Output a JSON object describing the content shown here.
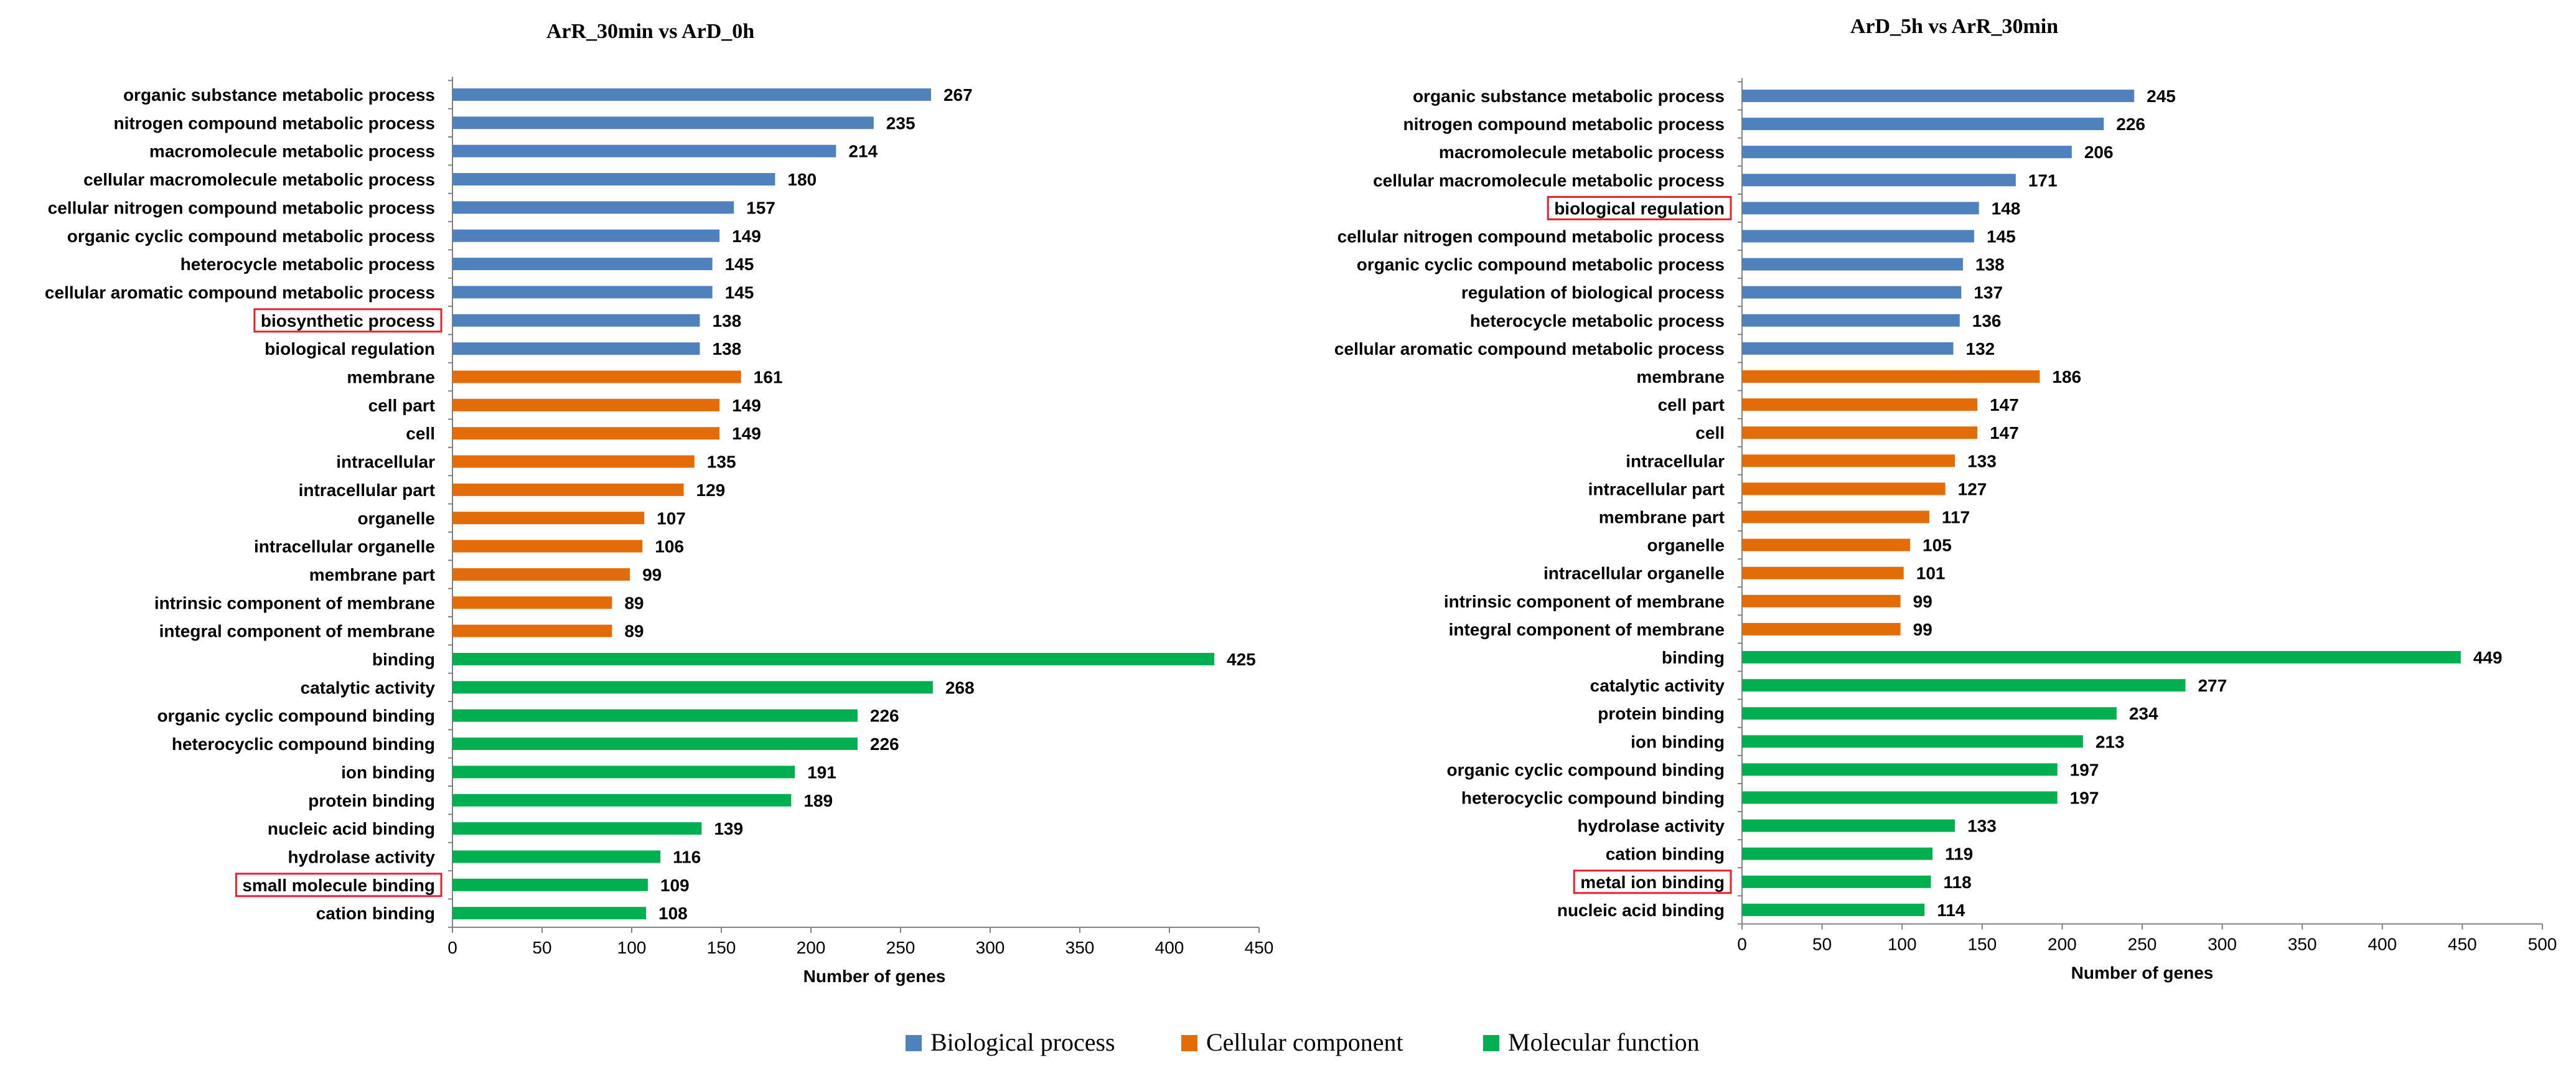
{
  "colors": {
    "biological_process": "#4f81bd",
    "cellular_component": "#e36c09",
    "molecular_function": "#00b050",
    "highlight_box": "#e8202a"
  },
  "legend": {
    "items": [
      {
        "label": "Biological process",
        "color": "#4f81bd"
      },
      {
        "label": "Cellular component",
        "color": "#e36c09"
      },
      {
        "label": "Molecular function",
        "color": "#00b050"
      }
    ]
  },
  "chart_data": [
    {
      "type": "bar",
      "orientation": "horizontal",
      "title": "ArR_30min vs ArD_0h",
      "xlabel": "Number of genes",
      "ylabel": "",
      "xlim": [
        0,
        450
      ],
      "xticks": [
        0,
        50,
        100,
        150,
        200,
        250,
        300,
        350,
        400,
        450
      ],
      "grid": false,
      "legend_position": "bottom-center",
      "categories": [
        "organic substance metabolic process",
        "nitrogen compound metabolic process",
        "macromolecule metabolic process",
        "cellular macromolecule metabolic process",
        "cellular nitrogen compound metabolic process",
        "organic cyclic compound metabolic process",
        "heterocycle metabolic process",
        "cellular aromatic compound metabolic process",
        "biosynthetic process",
        "biological regulation",
        "membrane",
        "cell part",
        "cell",
        "intracellular",
        "intracellular part",
        "organelle",
        "intracellular organelle",
        "membrane part",
        "intrinsic component of membrane",
        "integral component of membrane",
        "binding",
        "catalytic activity",
        "organic cyclic compound binding",
        "heterocyclic compound binding",
        "ion binding",
        "protein binding",
        "nucleic acid binding",
        "hydrolase activity",
        "small molecule binding",
        "cation binding"
      ],
      "values": [
        267,
        235,
        214,
        180,
        157,
        149,
        145,
        145,
        138,
        138,
        161,
        149,
        149,
        135,
        129,
        107,
        106,
        99,
        89,
        89,
        425,
        268,
        226,
        226,
        191,
        189,
        139,
        116,
        109,
        108
      ],
      "groups": [
        "BP",
        "BP",
        "BP",
        "BP",
        "BP",
        "BP",
        "BP",
        "BP",
        "BP",
        "BP",
        "CC",
        "CC",
        "CC",
        "CC",
        "CC",
        "CC",
        "CC",
        "CC",
        "CC",
        "CC",
        "MF",
        "MF",
        "MF",
        "MF",
        "MF",
        "MF",
        "MF",
        "MF",
        "MF",
        "MF"
      ],
      "highlighted": [
        "biosynthetic process",
        "small molecule binding"
      ]
    },
    {
      "type": "bar",
      "orientation": "horizontal",
      "title": "ArD_5h vs ArR_30min",
      "xlabel": "Number of genes",
      "ylabel": "",
      "xlim": [
        0,
        500
      ],
      "xticks": [
        0,
        50,
        100,
        150,
        200,
        250,
        300,
        350,
        400,
        450,
        500
      ],
      "grid": false,
      "legend_position": "bottom-center",
      "categories": [
        "organic substance metabolic process",
        "nitrogen compound metabolic process",
        "macromolecule metabolic process",
        "cellular macromolecule metabolic process",
        "biological regulation",
        "cellular nitrogen compound metabolic process",
        "organic cyclic compound metabolic process",
        "regulation of biological process",
        "heterocycle metabolic process",
        "cellular aromatic compound metabolic process",
        "membrane",
        "cell part",
        "cell",
        "intracellular",
        "intracellular part",
        "membrane part",
        "organelle",
        "intracellular organelle",
        "intrinsic component of membrane",
        "integral component of membrane",
        "binding",
        "catalytic activity",
        "protein binding",
        "ion binding",
        "organic cyclic compound binding",
        "heterocyclic compound binding",
        "hydrolase activity",
        "cation binding",
        "metal ion binding",
        "nucleic acid binding"
      ],
      "values": [
        245,
        226,
        206,
        171,
        148,
        145,
        138,
        137,
        136,
        132,
        186,
        147,
        147,
        133,
        127,
        117,
        105,
        101,
        99,
        99,
        449,
        277,
        234,
        213,
        197,
        197,
        133,
        119,
        118,
        114
      ],
      "groups": [
        "BP",
        "BP",
        "BP",
        "BP",
        "BP",
        "BP",
        "BP",
        "BP",
        "BP",
        "BP",
        "CC",
        "CC",
        "CC",
        "CC",
        "CC",
        "CC",
        "CC",
        "CC",
        "CC",
        "CC",
        "MF",
        "MF",
        "MF",
        "MF",
        "MF",
        "MF",
        "MF",
        "MF",
        "MF",
        "MF"
      ],
      "highlighted": [
        "biological regulation",
        "metal ion binding"
      ]
    }
  ]
}
